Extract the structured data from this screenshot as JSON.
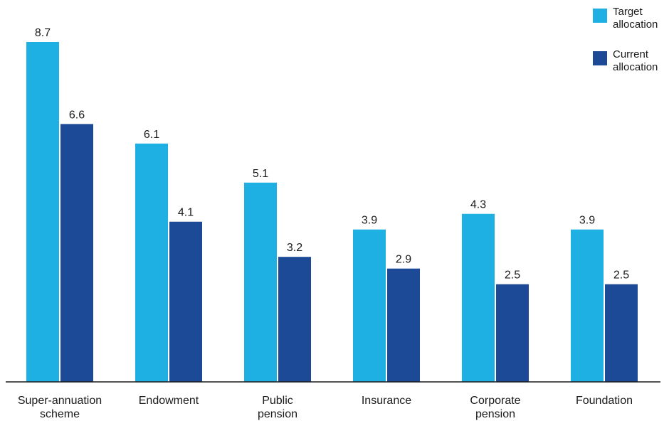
{
  "chart_data": {
    "type": "bar",
    "categories": [
      [
        "Super-annuation",
        "scheme"
      ],
      [
        "Endowment"
      ],
      [
        "Public",
        "pension"
      ],
      [
        "Insurance"
      ],
      [
        "Corporate",
        "pension"
      ],
      [
        "Foundation"
      ]
    ],
    "series": [
      {
        "name": "Target allocation",
        "color": "#1fb0e3",
        "values": [
          8.7,
          6.1,
          5.1,
          3.9,
          4.3,
          3.9
        ]
      },
      {
        "name": "Current allocation",
        "color": "#1c4a96",
        "values": [
          6.6,
          4.1,
          3.2,
          2.9,
          2.5,
          2.5
        ]
      }
    ],
    "ylim": [
      0,
      8.7
    ],
    "legend_position": "top-right",
    "grid": false
  }
}
